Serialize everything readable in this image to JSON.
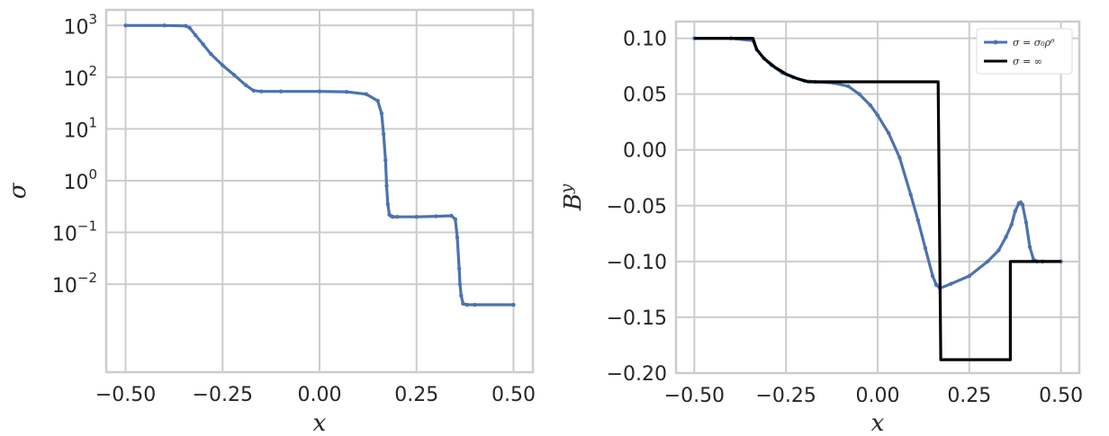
{
  "chart_data": [
    {
      "type": "line",
      "title": "",
      "xlabel": "x",
      "ylabel": "σ",
      "xlim": [
        -0.55,
        0.55
      ],
      "ylim_log10": [
        -3.7,
        3.3
      ],
      "yscale": "log",
      "grid": true,
      "xticks": [
        {
          "value": -0.5,
          "label": "−0.50"
        },
        {
          "value": -0.25,
          "label": "−0.25"
        },
        {
          "value": 0.0,
          "label": "0.00"
        },
        {
          "value": 0.25,
          "label": "0.25"
        },
        {
          "value": 0.5,
          "label": "0.50"
        }
      ],
      "yticks": [
        {
          "exp": 3,
          "label": "10",
          "sup": "3"
        },
        {
          "exp": 2,
          "label": "10",
          "sup": "2"
        },
        {
          "exp": 1,
          "label": "10",
          "sup": "1"
        },
        {
          "exp": 0,
          "label": "10",
          "sup": "0"
        },
        {
          "exp": -1,
          "label": "10",
          "sup": "−1"
        },
        {
          "exp": -2,
          "label": "10",
          "sup": "−2"
        }
      ],
      "series": [
        {
          "color": "#4c72b0",
          "marker": "dot",
          "x": [
            -0.5,
            -0.4,
            -0.345,
            -0.335,
            -0.32,
            -0.3,
            -0.28,
            -0.25,
            -0.22,
            -0.19,
            -0.17,
            -0.15,
            -0.1,
            0.0,
            0.07,
            0.12,
            0.15,
            0.16,
            0.165,
            0.17,
            0.173,
            0.176,
            0.18,
            0.185,
            0.19,
            0.2,
            0.25,
            0.3,
            0.34,
            0.35,
            0.355,
            0.36,
            0.362,
            0.365,
            0.37,
            0.38,
            0.4,
            0.5
          ],
          "y": [
            1000,
            1000,
            980,
            900,
            650,
            430,
            280,
            170,
            110,
            70,
            55,
            53,
            53,
            53,
            52,
            47,
            35,
            20,
            8,
            2.5,
            0.8,
            0.35,
            0.22,
            0.205,
            0.2,
            0.2,
            0.2,
            0.205,
            0.21,
            0.18,
            0.08,
            0.02,
            0.01,
            0.006,
            0.0042,
            0.004,
            0.004,
            0.004
          ]
        }
      ]
    },
    {
      "type": "line",
      "title": "",
      "xlabel": "x",
      "ylabel": "B",
      "ylabel_sup": "y",
      "xlim": [
        -0.55,
        0.55
      ],
      "ylim": [
        -0.2,
        0.115
      ],
      "grid": true,
      "legend": "top-right",
      "xticks": [
        {
          "value": -0.5,
          "label": "−0.50"
        },
        {
          "value": -0.25,
          "label": "−0.25"
        },
        {
          "value": 0.0,
          "label": "0.00"
        },
        {
          "value": 0.25,
          "label": "0.25"
        },
        {
          "value": 0.5,
          "label": "0.50"
        }
      ],
      "yticks": [
        {
          "value": 0.1,
          "label": "0.10"
        },
        {
          "value": 0.05,
          "label": "0.05"
        },
        {
          "value": 0.0,
          "label": "0.00"
        },
        {
          "value": -0.05,
          "label": "−0.05"
        },
        {
          "value": -0.1,
          "label": "−0.10"
        },
        {
          "value": -0.15,
          "label": "−0.15"
        },
        {
          "value": -0.2,
          "label": "−0.20"
        }
      ],
      "series": [
        {
          "name": "σ = σ₀ρ⁶",
          "color": "#4c72b0",
          "marker": "dot",
          "x": [
            -0.5,
            -0.4,
            -0.34,
            -0.33,
            -0.31,
            -0.29,
            -0.26,
            -0.23,
            -0.2,
            -0.17,
            -0.12,
            -0.08,
            -0.05,
            -0.02,
            0.0,
            0.03,
            0.06,
            0.09,
            0.11,
            0.13,
            0.15,
            0.16,
            0.17,
            0.2,
            0.25,
            0.3,
            0.33,
            0.35,
            0.365,
            0.375,
            0.385,
            0.39,
            0.395,
            0.405,
            0.415,
            0.425,
            0.435,
            0.45,
            0.5
          ],
          "y": [
            0.1,
            0.1,
            0.098,
            0.09,
            0.082,
            0.076,
            0.069,
            0.065,
            0.062,
            0.061,
            0.06,
            0.057,
            0.05,
            0.04,
            0.031,
            0.015,
            -0.007,
            -0.04,
            -0.063,
            -0.088,
            -0.113,
            -0.121,
            -0.124,
            -0.12,
            -0.113,
            -0.1,
            -0.09,
            -0.078,
            -0.067,
            -0.055,
            -0.048,
            -0.047,
            -0.049,
            -0.065,
            -0.087,
            -0.098,
            -0.1,
            -0.1,
            -0.1
          ]
        },
        {
          "name": "σ = ∞",
          "color": "#000000",
          "marker": "none",
          "x": [
            -0.5,
            -0.34,
            -0.33,
            -0.31,
            -0.28,
            -0.25,
            -0.22,
            -0.19,
            -0.17,
            0.0,
            0.165,
            0.165,
            0.172,
            0.172,
            0.362,
            0.362,
            0.5
          ],
          "y": [
            0.1,
            0.1,
            0.09,
            0.082,
            0.074,
            0.068,
            0.064,
            0.061,
            0.061,
            0.061,
            0.061,
            0.06,
            -0.187,
            -0.188,
            -0.188,
            -0.1,
            -0.1
          ]
        }
      ]
    }
  ]
}
